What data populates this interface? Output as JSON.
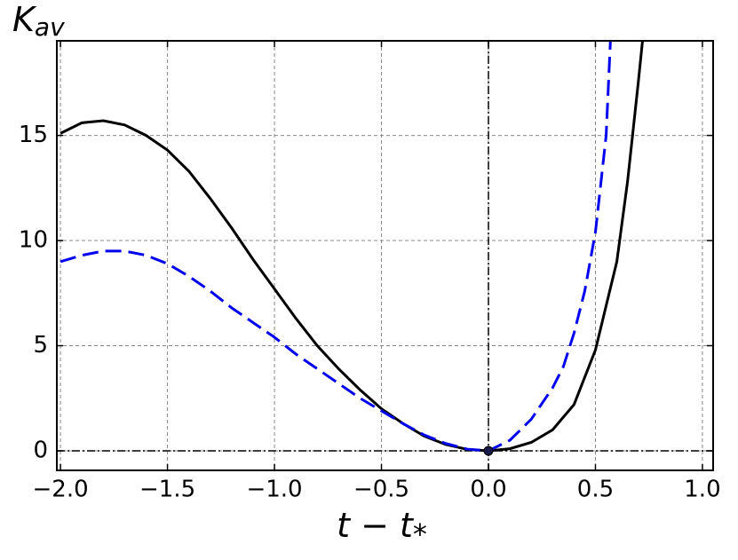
{
  "chart_data": {
    "type": "line",
    "y_label": "K",
    "y_label_subscript": "av",
    "x_label": "t − t",
    "x_label_subscript": "*",
    "xlim": [
      -2.017,
      1.05
    ],
    "ylim": [
      -0.93,
      19.5
    ],
    "xticks": [
      {
        "value": -2,
        "label": "−2.0"
      },
      {
        "value": -1.5,
        "label": "−1.5"
      },
      {
        "value": -1,
        "label": "−1.0"
      },
      {
        "value": -0.5,
        "label": "−0.5"
      },
      {
        "value": 0,
        "label": "0.0"
      },
      {
        "value": 0.5,
        "label": "0.5"
      },
      {
        "value": 1,
        "label": "1.0"
      }
    ],
    "yticks": [
      0,
      5,
      10,
      15
    ],
    "grid": true,
    "vlines": [
      0
    ],
    "hlines": [
      0
    ],
    "point": {
      "x": 0,
      "y": 0,
      "color": "#1a1a4a"
    },
    "series": [
      {
        "color": "#000000",
        "dash": "solid",
        "x": [
          -2.0,
          -1.9,
          -1.8,
          -1.7,
          -1.6,
          -1.5,
          -1.4,
          -1.3,
          -1.2,
          -1.1,
          -1.0,
          -0.9,
          -0.8,
          -0.7,
          -0.6,
          -0.5,
          -0.4,
          -0.3,
          -0.2,
          -0.1,
          0,
          0.1,
          0.2,
          0.3,
          0.4,
          0.5,
          0.6,
          0.65,
          0.7,
          0.72
        ],
        "values": [
          15.1,
          15.6,
          15.7,
          15.5,
          15.0,
          14.3,
          13.3,
          12.0,
          10.6,
          9.1,
          7.7,
          6.3,
          5.0,
          3.9,
          2.9,
          2.0,
          1.3,
          0.7,
          0.3,
          0.07,
          0,
          0.1,
          0.4,
          1.0,
          2.2,
          4.8,
          9.0,
          12.8,
          17.5,
          19.5
        ]
      },
      {
        "color": "#0000ee",
        "dash": "dashed",
        "x": [
          -2.0,
          -1.9,
          -1.8,
          -1.7,
          -1.6,
          -1.5,
          -1.4,
          -1.3,
          -1.2,
          -1.1,
          -1.0,
          -0.9,
          -0.8,
          -0.7,
          -0.6,
          -0.5,
          -0.4,
          -0.3,
          -0.2,
          -0.1,
          0,
          0.1,
          0.2,
          0.3,
          0.35,
          0.4,
          0.45,
          0.5,
          0.55,
          0.57
        ],
        "values": [
          9.0,
          9.3,
          9.5,
          9.5,
          9.3,
          8.9,
          8.3,
          7.6,
          6.8,
          6.1,
          5.4,
          4.6,
          3.9,
          3.2,
          2.5,
          1.9,
          1.3,
          0.75,
          0.35,
          0.08,
          0,
          0.5,
          1.5,
          3.0,
          4.0,
          5.6,
          7.6,
          10.4,
          15.0,
          19.5
        ]
      }
    ]
  }
}
